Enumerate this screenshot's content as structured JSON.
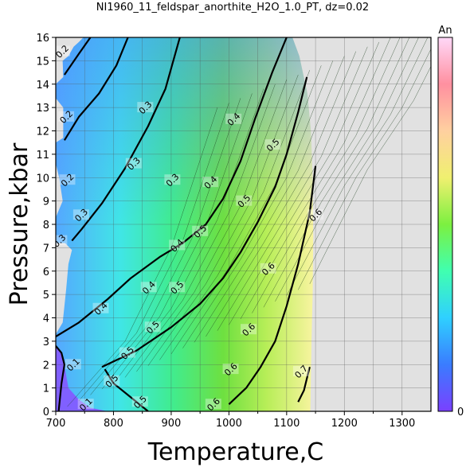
{
  "chart_data": {
    "type": "heatmap",
    "title": "NI1960_11_feldspar_anorthite_H2O_1.0_PT, dz=0.02",
    "xlabel": "Temperature,C",
    "ylabel": "Pressure,kbar",
    "xlim": [
      700,
      1350
    ],
    "ylim": [
      0,
      16
    ],
    "x_ticks": [
      700,
      800,
      900,
      1000,
      1100,
      1200,
      1300
    ],
    "y_ticks": [
      0,
      1,
      2,
      3,
      4,
      5,
      6,
      7,
      8,
      9,
      10,
      11,
      12,
      13,
      14,
      15,
      16
    ],
    "grid": true,
    "colorbar": {
      "label": "An",
      "min_label": "0",
      "range": [
        0,
        1
      ],
      "placement": "right",
      "colors": [
        "#7a40ff",
        "#3a7cff",
        "#2fd0ff",
        "#40ffb0",
        "#7cf040",
        "#f0f070",
        "#ffd0a0",
        "#ff90a0",
        "#ffd8f8"
      ]
    },
    "no_data_color": "#e1e1e1",
    "bold_contours": [
      {
        "level": "0.2",
        "points": [
          [
            760,
            16
          ],
          [
            740,
            15.3
          ],
          [
            715,
            14.4
          ]
        ]
      },
      {
        "level": "0.2",
        "points": [
          [
            715,
            11.6
          ],
          [
            740,
            12.6
          ],
          [
            775,
            13.6
          ],
          [
            805,
            14.8
          ],
          [
            825,
            16
          ]
        ]
      },
      {
        "level": "0.3",
        "points": [
          [
            728,
            7.3
          ],
          [
            745,
            7.8
          ],
          [
            780,
            8.9
          ],
          [
            820,
            10.4
          ],
          [
            860,
            12.2
          ],
          [
            890,
            13.8
          ],
          [
            915,
            16
          ]
        ]
      },
      {
        "level": "0.4",
        "points": [
          [
            700,
            3.2
          ],
          [
            740,
            3.8
          ],
          [
            790,
            4.8
          ],
          [
            830,
            5.7
          ],
          [
            880,
            6.6
          ],
          [
            920,
            7.2
          ],
          [
            960,
            8.0
          ],
          [
            990,
            9.1
          ],
          [
            1020,
            10.7
          ],
          [
            1045,
            12.5
          ],
          [
            1075,
            14.5
          ],
          [
            1100,
            16
          ]
        ]
      },
      {
        "level": "0.5",
        "points": [
          [
            780,
            1.9
          ],
          [
            840,
            2.6
          ],
          [
            900,
            3.6
          ],
          [
            950,
            4.6
          ],
          [
            990,
            5.7
          ],
          [
            1020,
            6.8
          ],
          [
            1050,
            8.1
          ],
          [
            1080,
            9.6
          ],
          [
            1100,
            11.0
          ],
          [
            1120,
            12.8
          ],
          [
            1135,
            14.3
          ]
        ]
      },
      {
        "level": "0.5",
        "points": [
          [
            860,
            0
          ],
          [
            830,
            0.6
          ],
          [
            800,
            1.2
          ],
          [
            785,
            1.8
          ]
        ]
      },
      {
        "level": "0.6",
        "points": [
          [
            1000,
            0.3
          ],
          [
            1030,
            1.0
          ],
          [
            1055,
            1.9
          ],
          [
            1080,
            3.0
          ],
          [
            1100,
            4.5
          ],
          [
            1120,
            6.3
          ],
          [
            1140,
            8.5
          ],
          [
            1150,
            10.5
          ]
        ]
      },
      {
        "level": "0.7",
        "points": [
          [
            1120,
            0.4
          ],
          [
            1130,
            0.9
          ],
          [
            1140,
            1.9
          ]
        ]
      },
      {
        "level": "0.1",
        "points": [
          [
            700,
            2.8
          ],
          [
            710,
            2.5
          ],
          [
            715,
            2.0
          ],
          [
            710,
            1.2
          ],
          [
            705,
            0
          ]
        ]
      }
    ],
    "contour_labels": [
      {
        "text": "0.2",
        "t": 711,
        "p": 15.4
      },
      {
        "text": "0.2",
        "t": 718,
        "p": 12.6
      },
      {
        "text": "0.2",
        "t": 720,
        "p": 9.9
      },
      {
        "text": "0.3",
        "t": 855,
        "p": 13.0
      },
      {
        "text": "0.3",
        "t": 835,
        "p": 10.6
      },
      {
        "text": "0.3",
        "t": 902,
        "p": 9.9
      },
      {
        "text": "0.3",
        "t": 744,
        "p": 8.4
      },
      {
        "text": "0.3",
        "t": 706,
        "p": 7.3
      },
      {
        "text": "0.4",
        "t": 1008,
        "p": 12.5
      },
      {
        "text": "0.4",
        "t": 968,
        "p": 9.8
      },
      {
        "text": "0.4",
        "t": 910,
        "p": 7.1
      },
      {
        "text": "0.4",
        "t": 861,
        "p": 5.3
      },
      {
        "text": "0.4",
        "t": 778,
        "p": 4.4
      },
      {
        "text": "0.5",
        "t": 1076,
        "p": 11.4
      },
      {
        "text": "0.5",
        "t": 1026,
        "p": 9.0
      },
      {
        "text": "0.5",
        "t": 950,
        "p": 7.7
      },
      {
        "text": "0.5",
        "t": 910,
        "p": 5.3
      },
      {
        "text": "0.5",
        "t": 868,
        "p": 3.6
      },
      {
        "text": "0.5",
        "t": 824,
        "p": 2.5
      },
      {
        "text": "0.5",
        "t": 797,
        "p": 1.3
      },
      {
        "text": "0.5",
        "t": 846,
        "p": 0.4
      },
      {
        "text": "0.6",
        "t": 1150,
        "p": 8.4
      },
      {
        "text": "0.6",
        "t": 1068,
        "p": 6.1
      },
      {
        "text": "0.6",
        "t": 1034,
        "p": 3.5
      },
      {
        "text": "0.6",
        "t": 1003,
        "p": 1.8
      },
      {
        "text": "0.6",
        "t": 973,
        "p": 0.3
      },
      {
        "text": "0.7",
        "t": 1125,
        "p": 1.7
      },
      {
        "text": "0.1",
        "t": 730,
        "p": 2.0
      },
      {
        "text": "0.1",
        "t": 752,
        "p": 0.3
      }
    ]
  }
}
